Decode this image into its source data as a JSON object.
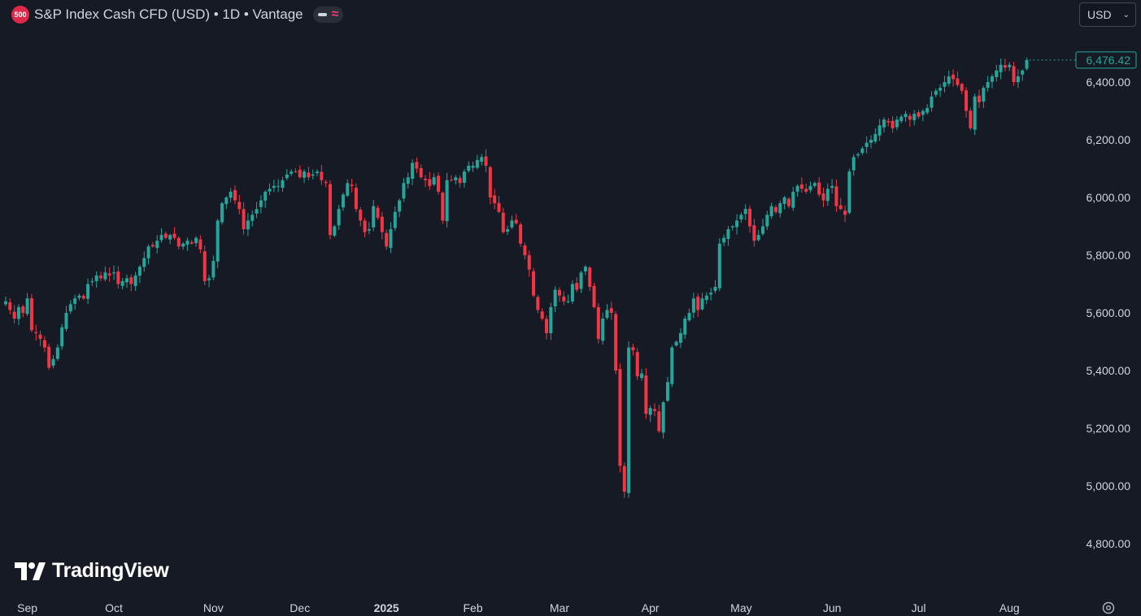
{
  "header": {
    "symbol_badge": "500",
    "title": "S&P Index Cash CFD (USD) • 1D • Vantage"
  },
  "currency_select": {
    "value": "USD"
  },
  "branding": {
    "logo_text": "TradingView"
  },
  "colors": {
    "background": "#161a25",
    "up": "#26a69a",
    "down": "#f23645",
    "text": "#d1d4dc"
  },
  "chart_data": {
    "type": "candlestick",
    "last_price": 6476.42,
    "last_price_label": "6,476.42",
    "y_axis": {
      "range": [
        4700,
        6500
      ],
      "ticks": [
        {
          "value": 4800,
          "label": "4,800.00"
        },
        {
          "value": 5000,
          "label": "5,000.00"
        },
        {
          "value": 5200,
          "label": "5,200.00"
        },
        {
          "value": 5400,
          "label": "5,400.00"
        },
        {
          "value": 5600,
          "label": "5,600.00"
        },
        {
          "value": 5800,
          "label": "5,800.00"
        },
        {
          "value": 6000,
          "label": "6,000.00"
        },
        {
          "value": 6200,
          "label": "6,200.00"
        },
        {
          "value": 6400,
          "label": "6,400.00"
        }
      ]
    },
    "x_axis": {
      "ticks": [
        {
          "index": 5,
          "label": "Sep",
          "bold": false
        },
        {
          "index": 25,
          "label": "Oct",
          "bold": false
        },
        {
          "index": 48,
          "label": "Nov",
          "bold": false
        },
        {
          "index": 68,
          "label": "Dec",
          "bold": false
        },
        {
          "index": 88,
          "label": "2025",
          "bold": true
        },
        {
          "index": 108,
          "label": "Feb",
          "bold": false
        },
        {
          "index": 128,
          "label": "Mar",
          "bold": false
        },
        {
          "index": 149,
          "label": "Apr",
          "bold": false
        },
        {
          "index": 170,
          "label": "May",
          "bold": false
        },
        {
          "index": 191,
          "label": "Jun",
          "bold": false
        },
        {
          "index": 211,
          "label": "Jul",
          "bold": false
        },
        {
          "index": 232,
          "label": "Aug",
          "bold": false
        }
      ]
    },
    "closes": [
      5640,
      5610,
      5580,
      5620,
      5600,
      5650,
      5540,
      5530,
      5510,
      5480,
      5410,
      5440,
      5480,
      5550,
      5600,
      5630,
      5650,
      5660,
      5650,
      5700,
      5710,
      5730,
      5720,
      5740,
      5730,
      5740,
      5700,
      5710,
      5720,
      5700,
      5730,
      5760,
      5790,
      5830,
      5830,
      5850,
      5870,
      5860,
      5870,
      5860,
      5830,
      5840,
      5850,
      5840,
      5860,
      5820,
      5710,
      5720,
      5780,
      5920,
      5980,
      6000,
      6020,
      5990,
      5960,
      5890,
      5920,
      5940,
      5960,
      5990,
      6020,
      6030,
      6040,
      6040,
      6060,
      6080,
      6090,
      6090,
      6070,
      6090,
      6070,
      6080,
      6090,
      6060,
      6050,
      5870,
      5900,
      5960,
      6010,
      6050,
      6040,
      5960,
      5920,
      5880,
      5890,
      5970,
      5930,
      5880,
      5830,
      5890,
      5950,
      5990,
      6050,
      6070,
      6120,
      6100,
      6070,
      6060,
      6040,
      6070,
      6020,
      5920,
      6060,
      6060,
      6070,
      6050,
      6090,
      6110,
      6110,
      6130,
      6140,
      6110,
      6000,
      5980,
      5950,
      5880,
      5890,
      5920,
      5910,
      5840,
      5800,
      5750,
      5660,
      5610,
      5580,
      5530,
      5620,
      5680,
      5660,
      5640,
      5640,
      5700,
      5680,
      5740,
      5760,
      5690,
      5620,
      5510,
      5580,
      5610,
      5600,
      5400,
      5070,
      4980,
      5480,
      5470,
      5380,
      5390,
      5250,
      5270,
      5260,
      5190,
      5290,
      5360,
      5480,
      5500,
      5530,
      5580,
      5600,
      5650,
      5610,
      5650,
      5660,
      5670,
      5690,
      5840,
      5860,
      5890,
      5900,
      5920,
      5940,
      5960,
      5900,
      5850,
      5870,
      5900,
      5940,
      5970,
      5950,
      5980,
      6000,
      5970,
      6020,
      6040,
      6030,
      6020,
      6040,
      6050,
      6010,
      5990,
      6030,
      6040,
      5970,
      5960,
      5940,
      6090,
      6140,
      6150,
      6170,
      6190,
      6200,
      6220,
      6250,
      6270,
      6260,
      6240,
      6270,
      6280,
      6290,
      6270,
      6290,
      6280,
      6300,
      6310,
      6350,
      6370,
      6380,
      6400,
      6420,
      6410,
      6390,
      6370,
      6300,
      6240,
      6350,
      6330,
      6380,
      6400,
      6420,
      6440,
      6460,
      6450,
      6460,
      6400,
      6420,
      6440,
      6476.42
    ]
  }
}
